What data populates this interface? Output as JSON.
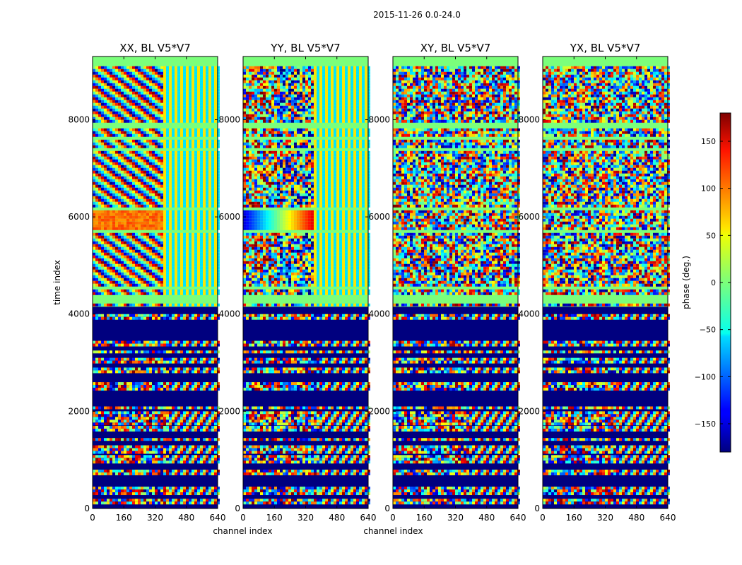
{
  "suptitle": "2015-11-26 0.0-24.0",
  "chart_data": [
    {
      "type": "heatmap",
      "title": "XX, BL V5*V7",
      "xlabel": "channel index",
      "ylabel": "time index",
      "xlim": [
        0,
        640
      ],
      "ylim": [
        0,
        9300
      ],
      "xticks": [
        0,
        160,
        320,
        480,
        640
      ],
      "yticks": [
        0,
        2000,
        4000,
        6000,
        8000
      ],
      "pattern": "upper: diagonal phase fringes and orange/red bands; lower: flagged blue bands with fringes"
    },
    {
      "type": "heatmap",
      "title": "YY, BL V5*V7",
      "xlabel": "channel index",
      "ylabel": "",
      "xlim": [
        0,
        640
      ],
      "ylim": [
        0,
        9300
      ],
      "xticks": [
        0,
        160,
        320,
        480,
        640
      ],
      "yticks": [
        0,
        2000,
        4000,
        6000,
        8000
      ],
      "pattern": "upper: noisy phase with blue-to-red gradient bands; lower: flagged blue bands with fringes"
    },
    {
      "type": "heatmap",
      "title": "XY, BL V5*V7",
      "xlabel": "",
      "ylabel": "",
      "xlim": [
        0,
        640
      ],
      "ylim": [
        0,
        9300
      ],
      "xticks": [
        0,
        160,
        320,
        480,
        640
      ],
      "yticks": [
        0,
        2000,
        4000,
        6000,
        8000
      ],
      "pattern": "upper: random phase noise; lower: flagged blue bands with fringes"
    },
    {
      "type": "heatmap",
      "title": "YX, BL V5*V7",
      "xlabel": "",
      "ylabel": "",
      "xlim": [
        0,
        640
      ],
      "ylim": [
        0,
        9300
      ],
      "xticks": [
        0,
        160,
        320,
        480,
        640
      ],
      "yticks": [
        0,
        2000,
        4000,
        6000,
        8000
      ],
      "pattern": "upper: random phase noise; lower: flagged blue bands with fringes"
    }
  ],
  "colorbar": {
    "label": "phase (deg.)",
    "vmin": -180,
    "vmax": 180,
    "ticks": [
      150,
      100,
      50,
      0,
      -50,
      -100,
      -150
    ],
    "tick_labels": [
      "150",
      "100",
      "50",
      "0",
      "−50",
      "−100",
      "−150"
    ],
    "colormap": "jet"
  }
}
